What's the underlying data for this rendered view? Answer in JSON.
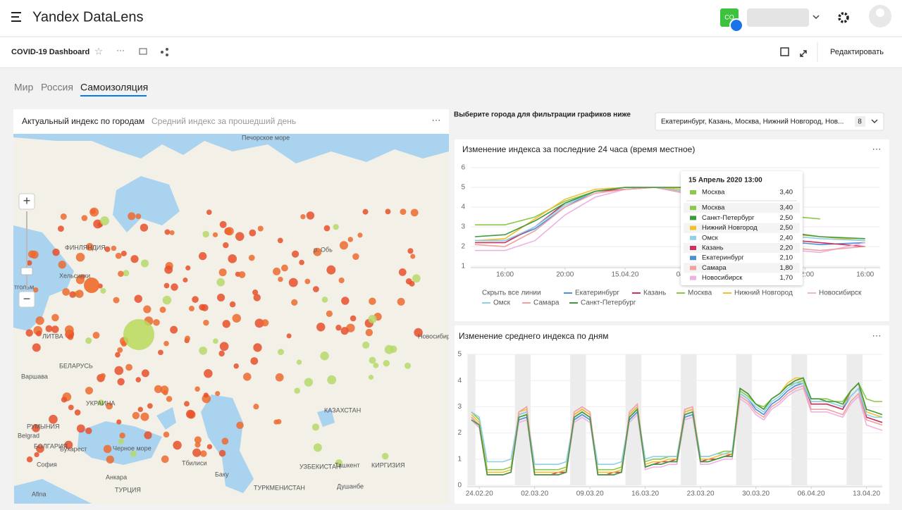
{
  "header": {
    "logo": "Yandex DataLens",
    "avatar": "CO"
  },
  "toolbar": {
    "title": "COVID-19 Dashboard",
    "edit": "Редактировать"
  },
  "tabs": [
    "Мир",
    "Россия",
    "Самоизоляция"
  ],
  "map_widget": {
    "tabs": [
      "Актуальный индекс по городам",
      "Средний индекс за прошедший день"
    ],
    "zoom_in": "+",
    "zoom_out": "−",
    "labels": [
      "Печорское море",
      "ФИНЛЯНДИЯ",
      "Хельсинки",
      "тгольм",
      "ЛИТВА",
      "Варшава",
      "БЕЛАРУСЬ",
      "УКРАИНА",
      "РУМЫНИЯ",
      "Belgrad",
      "БОЛГАРИЯ",
      "София",
      "Бухарест",
      "Черное море",
      "Анкара",
      "ТУРЦИЯ",
      "Afina",
      "Тбилиси",
      "Баку",
      "КАЗАХСТАН",
      "УЗБЕКИСТАН",
      "ТУРКМЕНИСТАН",
      "Ташкент",
      "КИРГИЗИЯ",
      "Душанбе",
      "Новосибирск",
      "р. Обь"
    ]
  },
  "filter": {
    "label": "Выберите города для фильтрации графиков ниже",
    "value": "Екатеринбург, Казань, Москва, Нижний Новгород, Нов...",
    "count": 8
  },
  "tooltip": {
    "title": "15 Апрель 2020 13:00",
    "rows": [
      {
        "name": "Москва",
        "value": "3,40"
      },
      {
        "name": "Москва",
        "value": "3,40"
      },
      {
        "name": "Санкт-Петербург",
        "value": "2,50"
      },
      {
        "name": "Нижний Новгород",
        "value": "2,50"
      },
      {
        "name": "Омск",
        "value": "2,40"
      },
      {
        "name": "Казань",
        "value": "2,20"
      },
      {
        "name": "Екатеринбург",
        "value": "2,10"
      },
      {
        "name": "Самара",
        "value": "1,80"
      },
      {
        "name": "Новосибирск",
        "value": "1,70"
      }
    ]
  },
  "legend_hide": "Скрыть все линии",
  "chart_data": [
    {
      "type": "line",
      "title": "Изменение индекса за последние 24 часа (время местное)",
      "x": [
        14,
        16,
        18,
        20,
        22,
        24,
        26,
        28,
        30,
        32,
        34,
        37,
        40
      ],
      "xlim": [
        14,
        41
      ],
      "xticks": [
        {
          "value": 16,
          "label": "16:00"
        },
        {
          "value": 20,
          "label": "20:00"
        },
        {
          "value": 24,
          "label": "15.04.20"
        },
        {
          "value": 28,
          "label": "04:00"
        },
        {
          "value": 32,
          "label": "08:00"
        },
        {
          "value": 36,
          "label": "12:00"
        },
        {
          "value": 40,
          "label": "16:00"
        }
      ],
      "ylim": [
        1,
        6
      ],
      "yticks": [
        1,
        2,
        3,
        4,
        5,
        6
      ],
      "grid": true,
      "series": [
        {
          "name": "Екатеринбург",
          "color": "#4a90d9",
          "values": [
            2.3,
            2.3,
            2.9,
            4.0,
            4.8,
            5.0,
            5.0,
            4.8,
            3.6,
            2.8,
            2.3,
            2.1,
            2.2
          ]
        },
        {
          "name": "Казань",
          "color": "#d0305a",
          "values": [
            2.2,
            2.2,
            3.0,
            4.2,
            4.8,
            4.9,
            5.0,
            4.8,
            3.7,
            2.9,
            2.4,
            2.2,
            2.0
          ]
        },
        {
          "name": "Москва",
          "color": "#8cc84b",
          "values": [
            3.1,
            3.1,
            3.5,
            4.3,
            4.8,
            5.0,
            5.0,
            5.0,
            4.6,
            4.0,
            3.6,
            3.4,
            null
          ]
        },
        {
          "name": "Нижний Новгород",
          "color": "#f0c030",
          "values": [
            2.3,
            2.4,
            3.4,
            4.4,
            4.9,
            5.0,
            5.0,
            4.9,
            4.0,
            3.2,
            2.7,
            2.5,
            2.3
          ]
        },
        {
          "name": "Новосибирск",
          "color": "#eeb2e2",
          "values": [
            1.8,
            1.8,
            2.3,
            3.6,
            4.5,
            4.9,
            5.0,
            4.7,
            3.4,
            2.5,
            1.9,
            1.7,
            2.2
          ]
        },
        {
          "name": "Омск",
          "color": "#8fd0e8",
          "values": [
            2.3,
            2.3,
            3.0,
            4.1,
            4.8,
            5.0,
            5.0,
            4.8,
            3.8,
            3.0,
            2.6,
            2.4,
            2.3
          ]
        },
        {
          "name": "Самара",
          "color": "#f2a0a0",
          "values": [
            2.1,
            2.0,
            2.8,
            4.0,
            4.7,
            4.9,
            5.0,
            4.7,
            3.5,
            2.6,
            2.0,
            1.8,
            2.0
          ]
        },
        {
          "name": "Санкт-Петербург",
          "color": "#3e9a3e",
          "values": [
            2.5,
            2.6,
            3.3,
            4.2,
            4.8,
            5.0,
            5.0,
            5.0,
            4.2,
            3.4,
            2.8,
            2.5,
            2.4
          ]
        }
      ]
    },
    {
      "type": "line",
      "title": "Изменение среднего индекса по дням",
      "x": [
        "23.02.20",
        "24.02.20",
        "25.02.20",
        "26.02.20",
        "27.02.20",
        "28.02.20",
        "29.02.20",
        "01.03.20",
        "02.03.20",
        "03.03.20",
        "04.03.20",
        "05.03.20",
        "06.03.20",
        "07.03.20",
        "08.03.20",
        "09.03.20",
        "10.03.20",
        "11.03.20",
        "12.03.20",
        "13.03.20",
        "14.03.20",
        "15.03.20",
        "16.03.20",
        "17.03.20",
        "18.03.20",
        "19.03.20",
        "20.03.20",
        "21.03.20",
        "22.03.20",
        "23.03.20",
        "24.03.20",
        "25.03.20",
        "26.03.20",
        "27.03.20",
        "28.03.20",
        "29.03.20",
        "30.03.20",
        "31.03.20",
        "01.04.20",
        "02.04.20",
        "03.04.20",
        "04.04.20",
        "05.04.20",
        "06.04.20",
        "07.04.20",
        "08.04.20",
        "09.04.20",
        "10.04.20",
        "11.04.20",
        "12.04.20",
        "13.04.20",
        "14.04.20",
        "15.04.20"
      ],
      "xticks": [
        "24.02.20",
        "02.03.20",
        "09.03.20",
        "16.03.20",
        "23.03.20",
        "30.03.20",
        "06.04.20",
        "13.04.20"
      ],
      "ylim": [
        0,
        5
      ],
      "yticks": [
        0,
        1,
        2,
        3,
        4,
        5
      ],
      "grid": true,
      "series": [
        {
          "color": "#4a90d9",
          "values": [
            2.6,
            2.3,
            0.4,
            0.4,
            0.4,
            0.5,
            2.5,
            2.6,
            0.4,
            0.4,
            0.4,
            0.4,
            0.5,
            2.5,
            2.7,
            2.5,
            0.4,
            0.4,
            0.4,
            0.5,
            2.5,
            2.8,
            0.7,
            0.8,
            0.8,
            0.9,
            0.9,
            2.6,
            2.7,
            0.9,
            0.9,
            1.0,
            1.1,
            1.1,
            3.5,
            3.3,
            2.9,
            2.7,
            3.1,
            3.3,
            3.6,
            3.8,
            3.9,
            3.1,
            3.1,
            3.1,
            3.0,
            2.9,
            3.4,
            3.7,
            2.6,
            2.5,
            2.4
          ]
        },
        {
          "color": "#d0305a",
          "values": [
            2.5,
            2.2,
            0.4,
            0.4,
            0.4,
            0.5,
            2.7,
            2.8,
            0.4,
            0.4,
            0.4,
            0.5,
            0.5,
            2.7,
            2.9,
            2.7,
            0.4,
            0.4,
            0.5,
            0.5,
            2.7,
            3.0,
            0.7,
            0.8,
            0.9,
            0.9,
            1.0,
            2.8,
            2.9,
            0.9,
            1.0,
            1.0,
            1.1,
            1.2,
            3.7,
            3.5,
            3.1,
            2.9,
            3.3,
            3.5,
            3.8,
            4.0,
            4.1,
            3.1,
            3.1,
            3.1,
            3.0,
            2.9,
            3.6,
            3.9,
            2.6,
            2.5,
            2.4
          ]
        },
        {
          "color": "#8cc84b",
          "values": [
            2.8,
            2.5,
            0.6,
            0.6,
            0.6,
            0.7,
            2.6,
            2.7,
            0.6,
            0.6,
            0.6,
            0.6,
            0.7,
            2.6,
            2.8,
            2.6,
            0.6,
            0.6,
            0.6,
            0.7,
            2.7,
            3.0,
            0.9,
            1.0,
            1.0,
            1.1,
            1.1,
            2.8,
            2.9,
            1.1,
            1.1,
            1.2,
            1.3,
            1.3,
            3.6,
            3.4,
            3.1,
            3.0,
            3.3,
            3.5,
            3.8,
            3.9,
            4.0,
            3.3,
            3.3,
            3.3,
            3.2,
            3.2,
            3.6,
            3.9,
            3.3,
            3.2,
            3.2
          ]
        },
        {
          "color": "#f0c030",
          "values": [
            2.7,
            2.4,
            0.5,
            0.5,
            0.5,
            0.6,
            2.8,
            2.9,
            0.5,
            0.5,
            0.5,
            0.5,
            0.6,
            2.7,
            2.9,
            2.7,
            0.5,
            0.5,
            0.5,
            0.6,
            2.7,
            3.0,
            0.8,
            0.9,
            0.9,
            1.0,
            1.0,
            2.8,
            2.9,
            1.0,
            1.0,
            1.1,
            1.2,
            1.2,
            3.7,
            3.5,
            3.1,
            2.9,
            3.3,
            3.5,
            3.9,
            4.1,
            4.1,
            3.2,
            3.2,
            3.2,
            3.1,
            3.0,
            3.6,
            3.9,
            2.8,
            2.7,
            2.6
          ]
        },
        {
          "color": "#eeb2e2",
          "values": [
            2.5,
            2.2,
            0.4,
            0.4,
            0.4,
            0.5,
            2.4,
            2.5,
            0.4,
            0.4,
            0.4,
            0.4,
            0.5,
            2.4,
            2.6,
            2.4,
            0.4,
            0.4,
            0.4,
            0.5,
            2.4,
            2.7,
            0.6,
            0.7,
            0.7,
            0.8,
            0.8,
            2.5,
            2.6,
            0.8,
            0.8,
            0.9,
            1.0,
            1.0,
            3.3,
            3.1,
            2.7,
            2.5,
            2.9,
            3.1,
            3.4,
            3.6,
            3.7,
            2.8,
            2.8,
            2.8,
            2.7,
            2.6,
            3.1,
            3.4,
            2.3,
            2.2,
            2.1
          ]
        },
        {
          "color": "#8fd0e8",
          "values": [
            2.8,
            2.6,
            0.9,
            0.9,
            0.9,
            1.0,
            2.7,
            2.8,
            0.8,
            0.8,
            0.8,
            0.8,
            0.9,
            2.6,
            2.8,
            2.6,
            0.8,
            0.8,
            0.8,
            0.9,
            2.6,
            2.9,
            1.0,
            1.1,
            1.1,
            1.1,
            1.1,
            2.7,
            2.8,
            1.1,
            1.1,
            1.2,
            1.2,
            1.3,
            3.5,
            3.3,
            3.0,
            2.8,
            3.2,
            3.4,
            3.7,
            3.9,
            3.9,
            3.2,
            3.2,
            3.2,
            3.1,
            3.0,
            3.4,
            3.7,
            2.7,
            2.6,
            2.6
          ]
        },
        {
          "color": "#f2a0a0",
          "values": [
            2.6,
            2.3,
            0.4,
            0.4,
            0.4,
            0.5,
            2.8,
            3.0,
            0.4,
            0.4,
            0.4,
            0.4,
            0.5,
            2.8,
            3.0,
            2.8,
            0.4,
            0.4,
            0.4,
            0.5,
            2.8,
            3.1,
            0.7,
            0.8,
            0.8,
            0.9,
            0.9,
            2.9,
            3.0,
            0.9,
            0.9,
            1.0,
            1.1,
            1.1,
            3.4,
            3.2,
            2.8,
            2.6,
            3.0,
            3.2,
            3.5,
            3.7,
            3.8,
            2.9,
            2.9,
            2.9,
            2.8,
            2.7,
            3.2,
            3.5,
            2.5,
            2.4,
            2.3
          ]
        },
        {
          "color": "#3e9a3e",
          "values": [
            2.5,
            2.3,
            0.4,
            0.4,
            0.4,
            0.5,
            2.6,
            2.7,
            0.4,
            0.4,
            0.4,
            0.4,
            0.5,
            2.6,
            2.8,
            2.6,
            0.4,
            0.4,
            0.4,
            0.5,
            2.6,
            2.9,
            0.7,
            0.8,
            0.8,
            0.9,
            0.9,
            2.7,
            2.8,
            0.9,
            0.9,
            1.0,
            1.1,
            1.1,
            3.7,
            3.5,
            3.1,
            2.9,
            3.3,
            3.5,
            3.8,
            4.0,
            4.1,
            3.3,
            3.3,
            3.2,
            3.2,
            3.1,
            3.6,
            3.9,
            2.9,
            2.8,
            2.7
          ]
        }
      ]
    }
  ]
}
